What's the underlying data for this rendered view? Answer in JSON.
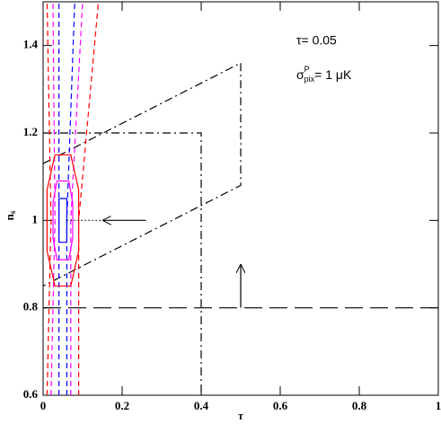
{
  "chart_data": {
    "type": "line",
    "xlabel": "τ",
    "ylabel": [
      "n",
      "s"
    ],
    "annotations": [
      [
        "τ= 0.05"
      ],
      [
        "σ",
        "P",
        "pix",
        "= 1 μK"
      ]
    ],
    "xlim": [
      0,
      1
    ],
    "ylim": [
      0.6,
      1.5
    ],
    "xticks": [
      0,
      0.2,
      0.4,
      0.6,
      0.8,
      1
    ],
    "yticks": [
      0.6,
      0.8,
      1,
      1.2,
      1.4
    ],
    "series": [
      {
        "color": "#000000",
        "style": "long-dashed",
        "x": [
          0,
          1
        ],
        "values": [
          0.8,
          0.8
        ]
      },
      {
        "color": "#000000",
        "style": "dash-dot",
        "x": [
          0,
          0.4,
          0.4
        ],
        "values": [
          1.2,
          1.2,
          0.6
        ]
      },
      {
        "color": "#000000",
        "style": "dash-dot",
        "x": [
          0,
          0.5,
          0.5,
          0
        ],
        "values": [
          1.13,
          1.36,
          1.08,
          0.85
        ]
      },
      {
        "color": "#ff0000",
        "style": "dashed",
        "x": [
          0.01,
          0.02,
          0.01
        ],
        "values": [
          0.6,
          1.0,
          1.5
        ]
      },
      {
        "color": "#ff0000",
        "style": "dashed",
        "x": [
          0.09,
          0.09,
          0.14
        ],
        "values": [
          0.6,
          1.0,
          1.5
        ]
      },
      {
        "color": "#ff00ff",
        "style": "dashed",
        "x": [
          0.02,
          0.03,
          0.025
        ],
        "values": [
          0.6,
          1.0,
          1.5
        ]
      },
      {
        "color": "#ff00ff",
        "style": "dashed",
        "x": [
          0.07,
          0.07,
          0.1
        ],
        "values": [
          0.6,
          1.0,
          1.5
        ]
      },
      {
        "color": "#0000ff",
        "style": "dashed",
        "x": [
          0.04,
          0.04,
          0.04
        ],
        "values": [
          0.6,
          1.0,
          1.5
        ]
      },
      {
        "color": "#0000ff",
        "style": "dashed",
        "x": [
          0.06,
          0.06,
          0.08
        ],
        "values": [
          0.6,
          1.0,
          1.5
        ]
      },
      {
        "color": "#ff0000",
        "style": "solid",
        "x": [
          0.03,
          0.07,
          0.09,
          0.09,
          0.07,
          0.03,
          0.01,
          0.01,
          0.03
        ],
        "values": [
          1.15,
          1.15,
          1.07,
          0.93,
          0.85,
          0.85,
          0.93,
          1.07,
          1.15
        ]
      },
      {
        "color": "#ff00ff",
        "style": "solid",
        "x": [
          0.035,
          0.065,
          0.075,
          0.075,
          0.065,
          0.035,
          0.025,
          0.025,
          0.035
        ],
        "values": [
          1.09,
          1.09,
          1.04,
          0.96,
          0.91,
          0.91,
          0.96,
          1.04,
          1.09
        ]
      },
      {
        "color": "#0000ff",
        "style": "solid",
        "x": [
          0.04,
          0.06,
          0.06,
          0.04,
          0.04
        ],
        "values": [
          1.05,
          1.05,
          0.95,
          0.95,
          1.05
        ]
      },
      {
        "color": "#000000",
        "style": "dotted",
        "x": [
          0.06,
          0.15
        ],
        "values": [
          1.0,
          1.0
        ]
      },
      {
        "color": "#000000",
        "style": "solid",
        "arrow": true,
        "x": [
          0.26,
          0.15
        ],
        "values": [
          1.0,
          1.0
        ]
      },
      {
        "color": "#000000",
        "style": "solid",
        "arrow": true,
        "x": [
          0.5,
          0.5
        ],
        "values": [
          0.8,
          0.9
        ]
      }
    ]
  }
}
